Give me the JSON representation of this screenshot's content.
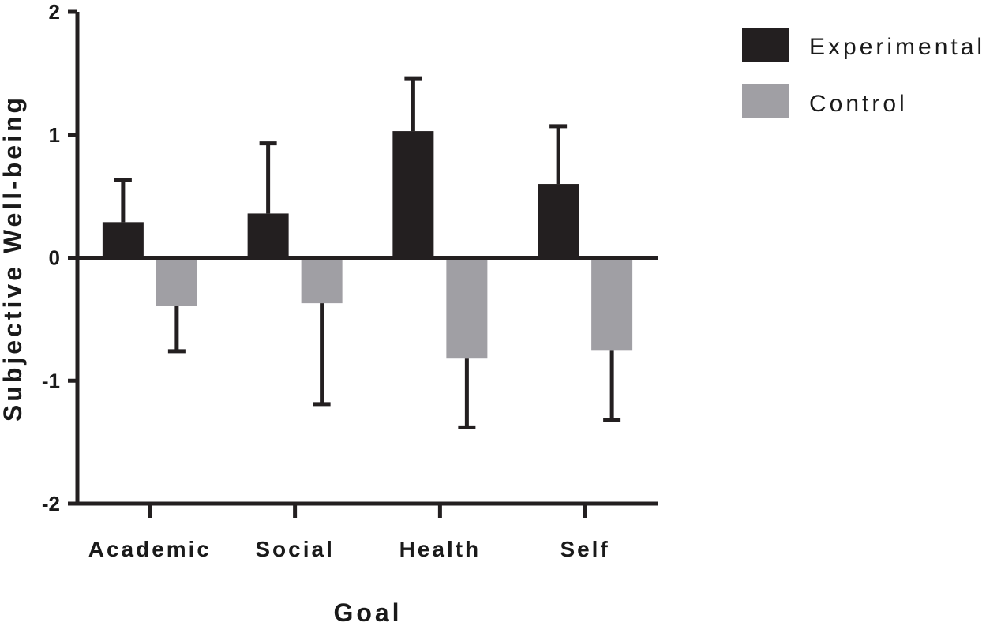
{
  "chart_data": {
    "type": "bar",
    "xlabel": "Goal",
    "ylabel": "Subjective Well-being",
    "categories": [
      "Academic",
      "Social",
      "Health",
      "Self"
    ],
    "ylim": [
      -2,
      2
    ],
    "yticks": [
      2,
      1,
      0,
      -1,
      -2
    ],
    "ytick_labels": [
      "2",
      "1",
      "0",
      "-1",
      "-2"
    ],
    "legend_position": "top-right",
    "grid": false,
    "series": [
      {
        "name": "Experimental",
        "color": "#231f20",
        "values": [
          0.29,
          0.36,
          1.03,
          0.6
        ],
        "error_bar_ends": [
          0.63,
          0.93,
          1.46,
          1.07
        ]
      },
      {
        "name": "Control",
        "color": "#a09fa4",
        "values": [
          -0.39,
          -0.37,
          -0.82,
          -0.75
        ],
        "error_bar_ends": [
          -0.76,
          -1.19,
          -1.38,
          -1.32
        ]
      }
    ]
  }
}
